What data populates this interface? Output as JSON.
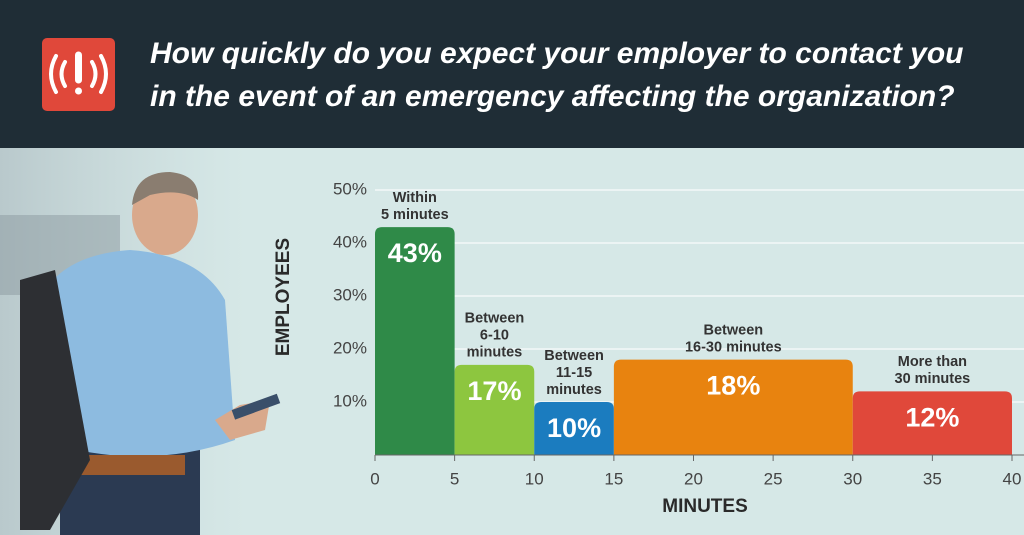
{
  "chart_data": {
    "type": "histogram",
    "title": [
      "How quickly do you expect your employer to contact you",
      "in the event of an emergency affecting the organization?"
    ],
    "bins": [
      0,
      5,
      10,
      15,
      30,
      40
    ],
    "counts": [
      43,
      17,
      10,
      18,
      12
    ],
    "value_labels": [
      "43%",
      "17%",
      "10%",
      "18%",
      "12%"
    ],
    "bin_labels": [
      [
        "Within",
        "5 minutes"
      ],
      [
        "Between",
        "6-10",
        "minutes"
      ],
      [
        "Between",
        "11-15",
        "minutes"
      ],
      [
        "Between",
        "16-30 minutes"
      ],
      [
        "More than",
        "30 minutes"
      ]
    ],
    "colors": [
      "#2f8a48",
      "#8dc63f",
      "#1b7cbf",
      "#e8830f",
      "#e0483a"
    ],
    "xlabel": "MINUTES",
    "ylabel": "EMPLOYEES",
    "xlim": [
      0,
      40
    ],
    "xticks": [
      0,
      5,
      10,
      15,
      20,
      25,
      30,
      35,
      40
    ],
    "ylim": [
      0,
      50
    ],
    "yticks": [
      {
        "value": 10,
        "label": "10%"
      },
      {
        "value": 20,
        "label": "20%"
      },
      {
        "value": 30,
        "label": "30%"
      },
      {
        "value": 40,
        "label": "40%"
      },
      {
        "value": 50,
        "label": "50%"
      }
    ],
    "grid": true
  }
}
